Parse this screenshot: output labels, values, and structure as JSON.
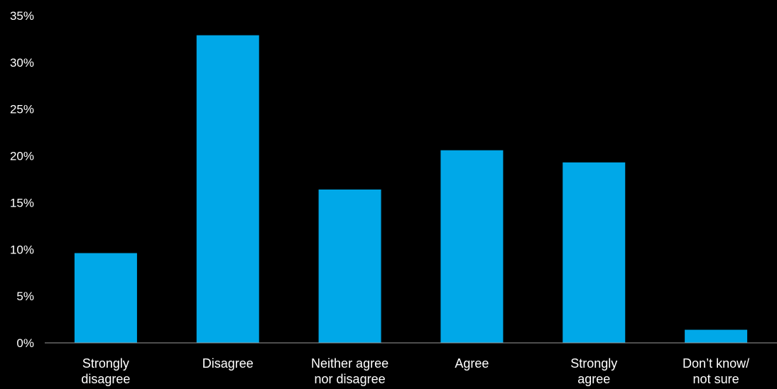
{
  "chart_data": {
    "type": "bar",
    "categories": [
      [
        "Strongly",
        "disagree"
      ],
      [
        "Disagree"
      ],
      [
        "Neither agree",
        "nor disagree"
      ],
      [
        "Agree"
      ],
      [
        "Strongly",
        "agree"
      ],
      [
        "Don’t know/",
        "not sure"
      ]
    ],
    "values": [
      9.6,
      32.9,
      16.4,
      20.6,
      19.3,
      1.4
    ],
    "y_ticks": [
      "0%",
      "5%",
      "10%",
      "15%",
      "20%",
      "25%",
      "30%",
      "35%"
    ],
    "ylim": [
      0,
      35
    ],
    "unit": "%",
    "grid": false,
    "colors": {
      "bar": "#00a8e8",
      "text": "#ffffff",
      "axis": "#9a9a9a",
      "background": "#000000"
    }
  }
}
